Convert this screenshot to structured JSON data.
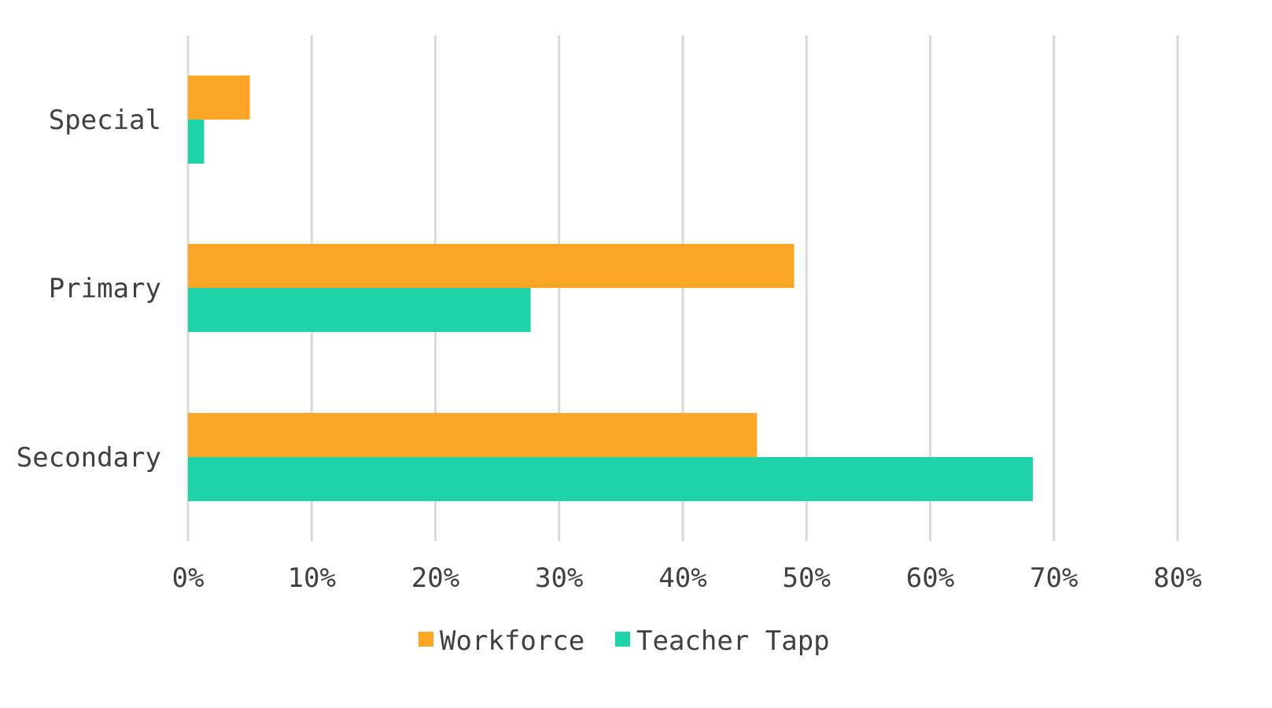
{
  "chart_data": {
    "type": "bar",
    "orientation": "horizontal",
    "categories": [
      "Special",
      "Primary",
      "Secondary"
    ],
    "series": [
      {
        "name": "Workforce",
        "color": "#FBA626",
        "values": [
          5,
          49,
          46
        ]
      },
      {
        "name": "Teacher Tapp",
        "color": "#1ED3A7",
        "values": [
          1.3,
          27.7,
          68.3
        ]
      }
    ],
    "xlim": [
      0,
      80
    ],
    "xticks": [
      "0%",
      "10%",
      "20%",
      "30%",
      "40%",
      "50%",
      "60%",
      "70%",
      "80%"
    ],
    "grid": true,
    "legend_position": "bottom"
  }
}
